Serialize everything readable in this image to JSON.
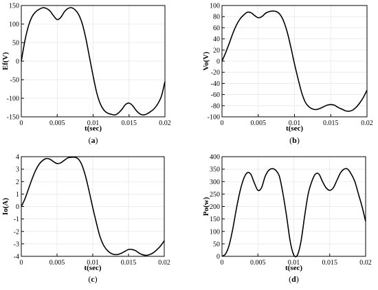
{
  "chart_data": [
    {
      "type": "line",
      "panel": "a",
      "caption_letter": "a",
      "xlabel": "t(sec)",
      "ylabel": "Ef(V)",
      "xlim": [
        0,
        0.02
      ],
      "ylim": [
        -150,
        150
      ],
      "xticks": [
        0,
        0.005,
        0.01,
        0.015,
        0.02
      ],
      "xtick_labels": [
        "0",
        "0.005",
        "0.01",
        "0.015",
        "0.02"
      ],
      "yticks": [
        -150,
        -100,
        -50,
        0,
        50,
        100,
        150
      ],
      "ytick_labels": [
        "-150",
        "-100",
        "-50",
        "0",
        "50",
        "100",
        "150"
      ],
      "grid": true,
      "series": [
        {
          "x": [
            0,
            0.0005,
            0.001,
            0.0015,
            0.002,
            0.0025,
            0.003,
            0.0035,
            0.004,
            0.0045,
            0.005,
            0.0055,
            0.006,
            0.0065,
            0.007,
            0.0075,
            0.008,
            0.0085,
            0.009,
            0.0095,
            0.01,
            0.0105,
            0.011,
            0.0115,
            0.012,
            0.0125,
            0.013,
            0.0135,
            0.014,
            0.0145,
            0.015,
            0.0155,
            0.016,
            0.0165,
            0.017,
            0.0175,
            0.018,
            0.0185,
            0.019,
            0.0195,
            0.02
          ],
          "y": [
            0,
            55,
            95,
            120,
            133,
            140,
            144,
            142,
            135,
            122,
            112,
            118,
            133,
            142,
            144,
            138,
            125,
            100,
            60,
            10,
            -40,
            -85,
            -115,
            -132,
            -140,
            -143,
            -145,
            -140,
            -130,
            -117,
            -113,
            -120,
            -133,
            -142,
            -145,
            -142,
            -136,
            -128,
            -115,
            -95,
            -55
          ]
        }
      ]
    },
    {
      "type": "line",
      "panel": "b",
      "caption_letter": "b",
      "xlabel": "t(sec)",
      "ylabel": "Vo(V)",
      "xlim": [
        0,
        0.02
      ],
      "ylim": [
        -100,
        100
      ],
      "xticks": [
        0,
        0.005,
        0.01,
        0.015,
        0.02
      ],
      "xtick_labels": [
        "0",
        "0.005",
        "0.01",
        "0.015",
        "0.02"
      ],
      "yticks": [
        -100,
        -80,
        -60,
        -40,
        -20,
        0,
        20,
        40,
        60,
        80,
        100
      ],
      "ytick_labels": [
        "-100",
        "-80",
        "-60",
        "-40",
        "-20",
        "0",
        "20",
        "40",
        "60",
        "80",
        "100"
      ],
      "grid": true,
      "series": [
        {
          "x": [
            0,
            0.0005,
            0.001,
            0.0015,
            0.002,
            0.0025,
            0.003,
            0.0035,
            0.004,
            0.0045,
            0.005,
            0.0055,
            0.006,
            0.0065,
            0.007,
            0.0075,
            0.008,
            0.0085,
            0.009,
            0.0095,
            0.01,
            0.0105,
            0.011,
            0.0115,
            0.012,
            0.0125,
            0.013,
            0.0135,
            0.014,
            0.0145,
            0.015,
            0.0155,
            0.016,
            0.0165,
            0.017,
            0.0175,
            0.018,
            0.0185,
            0.019,
            0.0195,
            0.02
          ],
          "y": [
            0,
            15,
            32,
            50,
            65,
            76,
            83,
            88,
            87,
            82,
            78,
            80,
            86,
            89,
            90,
            89,
            84,
            72,
            52,
            25,
            -5,
            -32,
            -57,
            -74,
            -82,
            -86,
            -87,
            -85,
            -82,
            -79,
            -78,
            -79,
            -83,
            -86,
            -89,
            -90,
            -88,
            -83,
            -75,
            -65,
            -52
          ]
        }
      ]
    },
    {
      "type": "line",
      "panel": "c",
      "caption_letter": "c",
      "xlabel": "t(sec)",
      "ylabel": "Io(A)",
      "xlim": [
        0,
        0.02
      ],
      "ylim": [
        -4,
        4
      ],
      "xticks": [
        0,
        0.005,
        0.01,
        0.015,
        0.02
      ],
      "xtick_labels": [
        "0",
        "0.005",
        "0.01",
        "0.015",
        "0.02"
      ],
      "yticks": [
        -4,
        -3,
        -2,
        -1,
        0,
        1,
        2,
        3,
        4
      ],
      "ytick_labels": [
        "-4",
        "-3",
        "-2",
        "-1",
        "0",
        "1",
        "2",
        "3",
        "4"
      ],
      "grid": true,
      "series": [
        {
          "x": [
            0,
            0.0005,
            0.001,
            0.0015,
            0.002,
            0.0025,
            0.003,
            0.0035,
            0.004,
            0.0045,
            0.005,
            0.0055,
            0.006,
            0.0065,
            0.007,
            0.0075,
            0.008,
            0.0085,
            0.009,
            0.0095,
            0.01,
            0.0105,
            0.011,
            0.0115,
            0.012,
            0.0125,
            0.013,
            0.0135,
            0.014,
            0.0145,
            0.015,
            0.0155,
            0.016,
            0.0165,
            0.017,
            0.0175,
            0.018,
            0.0185,
            0.019,
            0.0195,
            0.02
          ],
          "y": [
            0,
            0.6,
            1.4,
            2.2,
            2.9,
            3.4,
            3.7,
            3.85,
            3.8,
            3.6,
            3.45,
            3.5,
            3.7,
            3.9,
            3.95,
            3.95,
            3.8,
            3.3,
            2.4,
            1.2,
            -0.1,
            -1.3,
            -2.4,
            -3.1,
            -3.5,
            -3.75,
            -3.85,
            -3.85,
            -3.75,
            -3.6,
            -3.45,
            -3.45,
            -3.55,
            -3.75,
            -3.88,
            -3.92,
            -3.85,
            -3.7,
            -3.45,
            -3.15,
            -2.75
          ]
        }
      ]
    },
    {
      "type": "line",
      "panel": "d",
      "caption_letter": "d",
      "xlabel": "t(sec)",
      "ylabel": "Po(w)",
      "xlim": [
        0,
        0.02
      ],
      "ylim": [
        0,
        400
      ],
      "xticks": [
        0,
        0.005,
        0.01,
        0.015,
        0.02
      ],
      "xtick_labels": [
        "0",
        "0.005",
        "0.01",
        "0.015",
        "0.02"
      ],
      "yticks": [
        0,
        50,
        100,
        150,
        200,
        250,
        300,
        350,
        400
      ],
      "ytick_labels": [
        "0",
        "50",
        "100",
        "150",
        "200",
        "250",
        "300",
        "350",
        "400"
      ],
      "grid": true,
      "series": [
        {
          "x": [
            0,
            0.0005,
            0.001,
            0.0015,
            0.002,
            0.0025,
            0.003,
            0.0035,
            0.004,
            0.0045,
            0.005,
            0.0055,
            0.006,
            0.0065,
            0.007,
            0.0075,
            0.008,
            0.0085,
            0.009,
            0.0095,
            0.01,
            0.0105,
            0.011,
            0.0115,
            0.012,
            0.0125,
            0.013,
            0.0135,
            0.014,
            0.0145,
            0.015,
            0.0155,
            0.016,
            0.0165,
            0.017,
            0.0175,
            0.018,
            0.0185,
            0.019,
            0.0195,
            0.02
          ],
          "y": [
            0,
            10,
            45,
            110,
            190,
            260,
            310,
            335,
            330,
            295,
            265,
            275,
            320,
            345,
            352,
            345,
            320,
            250,
            160,
            60,
            5,
            5,
            60,
            160,
            250,
            300,
            330,
            330,
            300,
            275,
            265,
            275,
            305,
            335,
            350,
            350,
            330,
            300,
            250,
            200,
            140
          ]
        }
      ]
    }
  ]
}
